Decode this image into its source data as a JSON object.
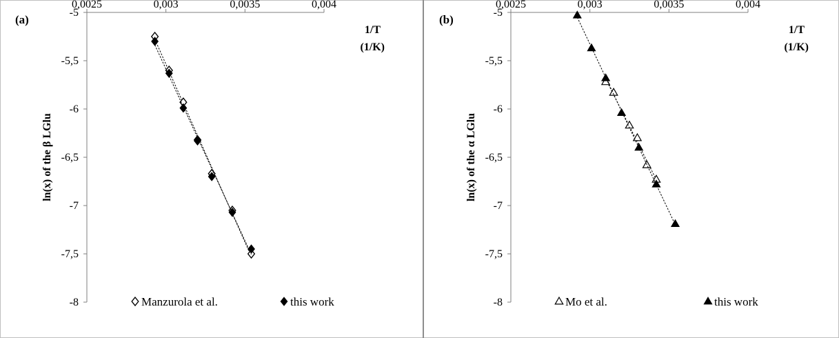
{
  "chart_data": [
    {
      "panel_label": "(a)",
      "type": "scatter",
      "xlabel_line1": "1/T",
      "xlabel_line2": "(1/K)",
      "ylabel": "ln(x) of the β LGlu",
      "xlim": [
        0.0025,
        0.004
      ],
      "ylim": [
        -8,
        -5
      ],
      "x_ticks": [
        "0,0025",
        "0,003",
        "0,0035",
        "0,004"
      ],
      "y_ticks": [
        "-5",
        "-5,5",
        "-6",
        "-6,5",
        "-7",
        "-7,5",
        "-8"
      ],
      "x_axis_position": "top",
      "trendlines": "dotted linear",
      "grid": false,
      "legend_position": "bottom",
      "series": [
        {
          "name": "Manzurola et al.",
          "marker": "open-diamond",
          "x": [
            0.00293,
            0.00302,
            0.00311,
            0.0032,
            0.00329,
            0.00342,
            0.00354
          ],
          "y": [
            -5.25,
            -5.6,
            -5.93,
            -6.32,
            -6.67,
            -7.05,
            -7.5
          ]
        },
        {
          "name": "this work",
          "marker": "filled-diamond",
          "x": [
            0.00293,
            0.00302,
            0.00311,
            0.0032,
            0.00329,
            0.00342,
            0.00354
          ],
          "y": [
            -5.3,
            -5.63,
            -5.99,
            -6.33,
            -6.7,
            -7.07,
            -7.45
          ]
        }
      ]
    },
    {
      "panel_label": "(b)",
      "type": "scatter",
      "xlabel_line1": "1/T",
      "xlabel_line2": "(1/K)",
      "ylabel": "ln(x) of the α LGlu",
      "xlim": [
        0.0025,
        0.004
      ],
      "ylim": [
        -8,
        -5
      ],
      "x_ticks": [
        "0,0025",
        "0,003",
        "0,0035",
        "0,004"
      ],
      "y_ticks": [
        "-5",
        "-5,5",
        "-6",
        "-6,5",
        "-7",
        "-7,5",
        "-8"
      ],
      "x_axis_position": "top",
      "trendlines": "dotted linear",
      "grid": false,
      "legend_position": "bottom",
      "series": [
        {
          "name": "Mo et al.",
          "marker": "open-triangle",
          "x": [
            0.0031,
            0.00315,
            0.00325,
            0.0033,
            0.00336,
            0.00342
          ],
          "y": [
            -5.72,
            -5.83,
            -6.17,
            -6.3,
            -6.58,
            -6.73
          ]
        },
        {
          "name": "this work",
          "marker": "filled-triangle",
          "x": [
            0.00292,
            0.00301,
            0.0031,
            0.0032,
            0.00331,
            0.00342,
            0.00354
          ],
          "y": [
            -5.03,
            -5.37,
            -5.68,
            -6.04,
            -6.4,
            -6.78,
            -7.19
          ]
        }
      ]
    }
  ]
}
